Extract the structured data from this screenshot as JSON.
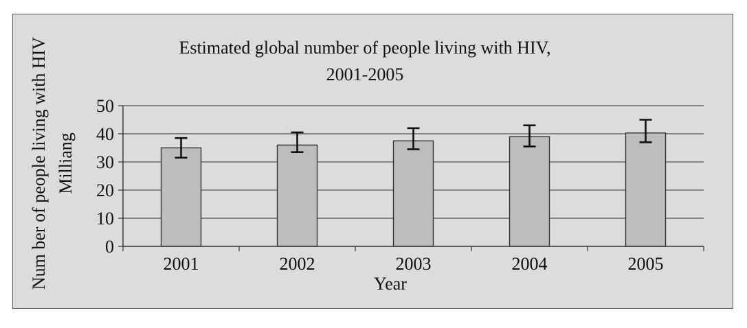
{
  "chart_data": {
    "type": "bar",
    "title": "Estimated global number of people living with HIV,",
    "subtitle": "2001-2005",
    "xlabel": "Year",
    "ylabel": "Num ber of people living with HIV",
    "ylabel_unit": "Milliang",
    "categories": [
      "2001",
      "2002",
      "2003",
      "2004",
      "2005"
    ],
    "values": [
      35,
      36,
      37.5,
      39,
      40.3
    ],
    "error_low": [
      31.5,
      33.5,
      34.5,
      35.5,
      37
    ],
    "error_high": [
      38.5,
      40.5,
      42,
      43,
      45
    ],
    "ylim": [
      0,
      50
    ],
    "yticks": [
      "0",
      "10",
      "20",
      "30",
      "40",
      "50"
    ],
    "grid": true,
    "legend": "none"
  },
  "colors": {
    "background": "#dcdcdc",
    "bar_fill": "#bdbdbd",
    "bar_stroke": "#333333",
    "grid": "#555555",
    "axis": "#333333",
    "error_bar": "#111111"
  }
}
